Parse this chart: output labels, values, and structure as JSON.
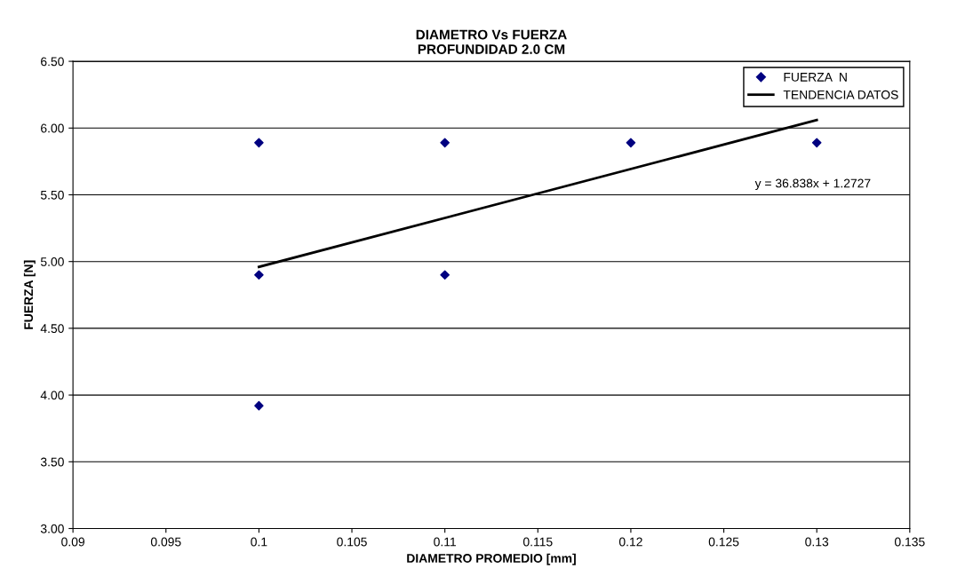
{
  "chart_data": {
    "type": "scatter",
    "title": "DIAMETRO Vs FUERZA\nPROFUNDIDAD 2.0 CM",
    "xlabel": "DIAMETRO PROMEDIO [mm]",
    "ylabel": "FUERZA [N]",
    "series": [
      {
        "name": "FUERZA  N",
        "color": "#000080",
        "marker": "diamond",
        "x": [
          0.1,
          0.1,
          0.1,
          0.11,
          0.11,
          0.12,
          0.13
        ],
        "values": [
          5.89,
          4.9,
          3.92,
          5.89,
          4.9,
          5.89,
          5.89
        ]
      },
      {
        "name": "TENDENCIA DATOS",
        "type": "line",
        "color": "#000000",
        "marker": "none",
        "x": [
          0.1,
          0.13
        ],
        "values": [
          4.96,
          6.06
        ]
      }
    ],
    "annotations": [
      "y = 36.838x + 1.2727"
    ],
    "xlim": [
      0.09,
      0.135
    ],
    "xticks": [
      0.09,
      0.095,
      0.1,
      0.105,
      0.11,
      0.115,
      0.12,
      0.125,
      0.13,
      0.135
    ],
    "ylim": [
      3.0,
      6.5
    ],
    "yticks": [
      {
        "value": 3.0,
        "label": "3.00"
      },
      {
        "value": 3.5,
        "label": "3.50"
      },
      {
        "value": 4.0,
        "label": "4.00"
      },
      {
        "value": 4.5,
        "label": "4.50"
      },
      {
        "value": 5.0,
        "label": "5.00"
      },
      {
        "value": 5.5,
        "label": "5.50"
      },
      {
        "value": 6.0,
        "label": "6.00"
      },
      {
        "value": 6.5,
        "label": "6.50"
      }
    ],
    "grid": "y",
    "legend": "top right"
  }
}
